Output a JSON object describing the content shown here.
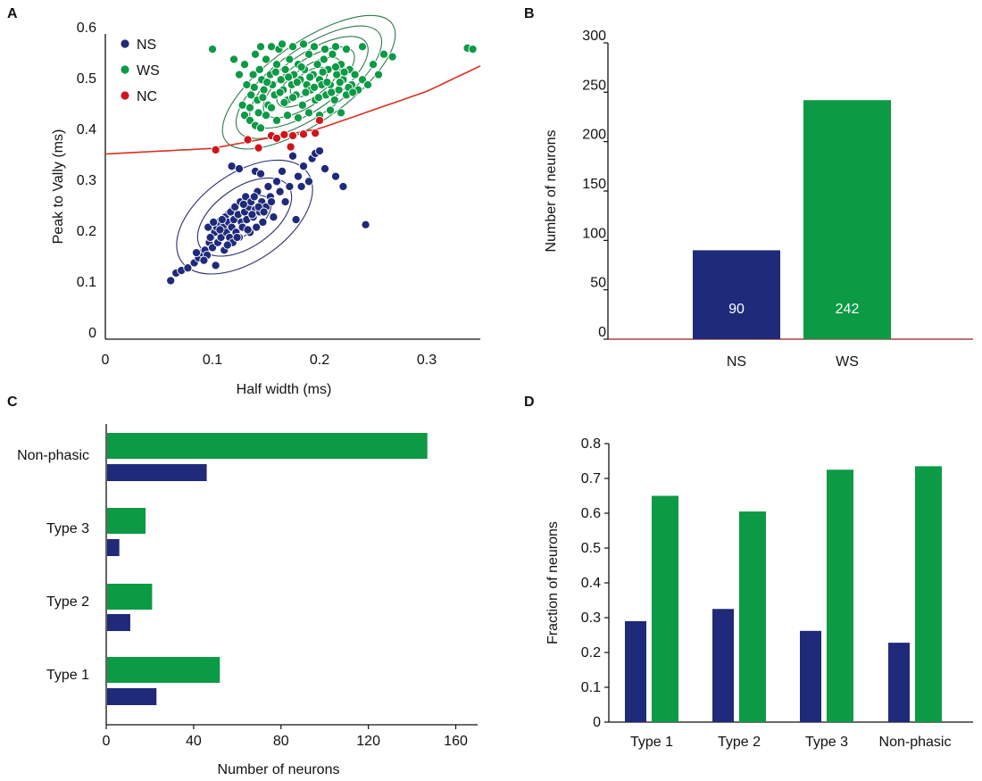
{
  "colors": {
    "ns": "#1f2a7a",
    "ws": "#0c9a45",
    "nc": "#d0151a",
    "axis": "#111111",
    "contour_ns": "#2a2f6e",
    "contour_ws": "#2f7a4b",
    "boundary": "#d7301f",
    "axis_b": "#8b2020"
  },
  "chart_data": [
    {
      "panel": "A",
      "type": "scatter",
      "xlabel": "Half width (ms)",
      "ylabel": "Peak to Vally (ms)",
      "xlim": [
        0,
        0.35
      ],
      "ylim": [
        0,
        0.6
      ],
      "x_ticks": [
        "0",
        "0.1",
        "0.2",
        "0.3"
      ],
      "y_ticks": [
        "0",
        "0.1",
        "0.2",
        "0.3",
        "0.4",
        "0.5",
        "0.6"
      ],
      "legend": [
        "NS",
        "WS",
        "NC"
      ],
      "legend_position": "top-left",
      "boundary": {
        "description": "curved decision boundary",
        "points": [
          [
            0,
            0.364
          ],
          [
            0.1,
            0.375
          ],
          [
            0.2,
            0.414
          ],
          [
            0.3,
            0.487
          ],
          [
            0.35,
            0.537
          ]
        ]
      },
      "series": [
        {
          "name": "NS",
          "points": [
            [
              0.061,
              0.115
            ],
            [
              0.066,
              0.13
            ],
            [
              0.071,
              0.135
            ],
            [
              0.077,
              0.14
            ],
            [
              0.083,
              0.15
            ],
            [
              0.087,
              0.16
            ],
            [
              0.09,
              0.17
            ],
            [
              0.093,
              0.175
            ],
            [
              0.095,
              0.165
            ],
            [
              0.097,
              0.19
            ],
            [
              0.099,
              0.2
            ],
            [
              0.1,
              0.18
            ],
            [
              0.102,
              0.21
            ],
            [
              0.104,
              0.22
            ],
            [
              0.105,
              0.19
            ],
            [
              0.106,
              0.23
            ],
            [
              0.108,
              0.2
            ],
            [
              0.11,
              0.22
            ],
            [
              0.111,
              0.175
            ],
            [
              0.112,
              0.24
            ],
            [
              0.113,
              0.21
            ],
            [
              0.115,
              0.23
            ],
            [
              0.116,
              0.2
            ],
            [
              0.117,
              0.25
            ],
            [
              0.118,
              0.22
            ],
            [
              0.119,
              0.19
            ],
            [
              0.12,
              0.235
            ],
            [
              0.121,
              0.26
            ],
            [
              0.122,
              0.21
            ],
            [
              0.124,
              0.245
            ],
            [
              0.125,
              0.2
            ],
            [
              0.126,
              0.27
            ],
            [
              0.127,
              0.23
            ],
            [
              0.128,
              0.22
            ],
            [
              0.13,
              0.25
            ],
            [
              0.131,
              0.28
            ],
            [
              0.132,
              0.235
            ],
            [
              0.134,
              0.26
            ],
            [
              0.135,
              0.21
            ],
            [
              0.136,
              0.27
            ],
            [
              0.138,
              0.24
            ],
            [
              0.14,
              0.255
            ],
            [
              0.141,
              0.22
            ],
            [
              0.142,
              0.29
            ],
            [
              0.144,
              0.25
            ],
            [
              0.146,
              0.27
            ],
            [
              0.147,
              0.23
            ],
            [
              0.15,
              0.26
            ],
            [
              0.152,
              0.3
            ],
            [
              0.154,
              0.28
            ],
            [
              0.157,
              0.24
            ],
            [
              0.16,
              0.31
            ],
            [
              0.163,
              0.29
            ],
            [
              0.165,
              0.33
            ],
            [
              0.168,
              0.27
            ],
            [
              0.172,
              0.3
            ],
            [
              0.175,
              0.36
            ],
            [
              0.178,
              0.235
            ],
            [
              0.18,
              0.32
            ],
            [
              0.183,
              0.3
            ],
            [
              0.185,
              0.34
            ],
            [
              0.19,
              0.31
            ],
            [
              0.193,
              0.355
            ],
            [
              0.196,
              0.365
            ],
            [
              0.2,
              0.37
            ],
            [
              0.205,
              0.335
            ],
            [
              0.215,
              0.32
            ],
            [
              0.222,
              0.3
            ],
            [
              0.243,
              0.225
            ],
            [
              0.085,
              0.17
            ],
            [
              0.092,
              0.155
            ],
            [
              0.098,
              0.2
            ],
            [
              0.103,
              0.145
            ],
            [
              0.107,
              0.215
            ],
            [
              0.109,
              0.235
            ],
            [
              0.114,
              0.185
            ],
            [
              0.123,
              0.2
            ],
            [
              0.129,
              0.265
            ],
            [
              0.133,
              0.215
            ],
            [
              0.137,
              0.245
            ],
            [
              0.139,
              0.28
            ],
            [
              0.143,
              0.26
            ],
            [
              0.148,
              0.25
            ],
            [
              0.155,
              0.27
            ],
            [
              0.096,
              0.22
            ],
            [
              0.101,
              0.23
            ],
            [
              0.118,
              0.34
            ],
            [
              0.125,
              0.335
            ],
            [
              0.14,
              0.33
            ],
            [
              0.145,
              0.325
            ]
          ]
        },
        {
          "name": "WS",
          "points": [
            [
              0.1,
              0.57
            ],
            [
              0.24,
              0.575
            ],
            [
              0.26,
              0.56
            ],
            [
              0.268,
              0.555
            ],
            [
              0.338,
              0.572
            ],
            [
              0.343,
              0.57
            ],
            [
              0.13,
              0.44
            ],
            [
              0.135,
              0.43
            ],
            [
              0.14,
              0.42
            ],
            [
              0.145,
              0.415
            ],
            [
              0.128,
              0.46
            ],
            [
              0.132,
              0.5
            ],
            [
              0.136,
              0.48
            ],
            [
              0.138,
              0.52
            ],
            [
              0.14,
              0.56
            ],
            [
              0.142,
              0.47
            ],
            [
              0.144,
              0.53
            ],
            [
              0.146,
              0.51
            ],
            [
              0.148,
              0.49
            ],
            [
              0.15,
              0.55
            ],
            [
              0.152,
              0.46
            ],
            [
              0.154,
              0.52
            ],
            [
              0.156,
              0.5
            ],
            [
              0.158,
              0.48
            ],
            [
              0.16,
              0.54
            ],
            [
              0.162,
              0.57
            ],
            [
              0.164,
              0.51
            ],
            [
              0.166,
              0.49
            ],
            [
              0.168,
              0.53
            ],
            [
              0.17,
              0.47
            ],
            [
              0.172,
              0.55
            ],
            [
              0.174,
              0.5
            ],
            [
              0.176,
              0.52
            ],
            [
              0.178,
              0.48
            ],
            [
              0.18,
              0.54
            ],
            [
              0.182,
              0.51
            ],
            [
              0.184,
              0.46
            ],
            [
              0.186,
              0.53
            ],
            [
              0.188,
              0.5
            ],
            [
              0.19,
              0.56
            ],
            [
              0.192,
              0.49
            ],
            [
              0.194,
              0.52
            ],
            [
              0.196,
              0.47
            ],
            [
              0.198,
              0.54
            ],
            [
              0.2,
              0.51
            ],
            [
              0.202,
              0.5
            ],
            [
              0.204,
              0.55
            ],
            [
              0.206,
              0.48
            ],
            [
              0.208,
              0.53
            ],
            [
              0.21,
              0.5
            ],
            [
              0.212,
              0.56
            ],
            [
              0.214,
              0.47
            ],
            [
              0.216,
              0.52
            ],
            [
              0.218,
              0.49
            ],
            [
              0.22,
              0.54
            ],
            [
              0.222,
              0.51
            ],
            [
              0.225,
              0.48
            ],
            [
              0.228,
              0.53
            ],
            [
              0.23,
              0.5
            ],
            [
              0.233,
              0.52
            ],
            [
              0.236,
              0.49
            ],
            [
              0.24,
              0.51
            ],
            [
              0.245,
              0.5
            ],
            [
              0.25,
              0.54
            ],
            [
              0.255,
              0.52
            ],
            [
              0.135,
              0.455
            ],
            [
              0.139,
              0.495
            ],
            [
              0.143,
              0.445
            ],
            [
              0.147,
              0.475
            ],
            [
              0.151,
              0.505
            ],
            [
              0.155,
              0.455
            ],
            [
              0.159,
              0.525
            ],
            [
              0.163,
              0.485
            ],
            [
              0.167,
              0.465
            ],
            [
              0.171,
              0.515
            ],
            [
              0.175,
              0.475
            ],
            [
              0.179,
              0.505
            ],
            [
              0.183,
              0.535
            ],
            [
              0.187,
              0.485
            ],
            [
              0.191,
              0.515
            ],
            [
              0.195,
              0.495
            ],
            [
              0.199,
              0.475
            ],
            [
              0.203,
              0.525
            ],
            [
              0.207,
              0.505
            ],
            [
              0.211,
              0.485
            ],
            [
              0.215,
              0.535
            ],
            [
              0.219,
              0.505
            ],
            [
              0.223,
              0.525
            ],
            [
              0.227,
              0.495
            ],
            [
              0.231,
              0.485
            ],
            [
              0.155,
              0.575
            ],
            [
              0.165,
              0.58
            ],
            [
              0.175,
              0.575
            ],
            [
              0.185,
              0.58
            ],
            [
              0.195,
              0.575
            ],
            [
              0.205,
              0.57
            ],
            [
              0.215,
              0.575
            ],
            [
              0.225,
              0.57
            ],
            [
              0.145,
              0.575
            ],
            [
              0.17,
              0.44
            ],
            [
              0.18,
              0.435
            ],
            [
              0.19,
              0.445
            ],
            [
              0.2,
              0.44
            ],
            [
              0.21,
              0.45
            ],
            [
              0.22,
              0.445
            ],
            [
              0.16,
              0.43
            ],
            [
              0.15,
              0.44
            ],
            [
              0.125,
              0.52
            ],
            [
              0.13,
              0.54
            ],
            [
              0.12,
              0.55
            ]
          ]
        },
        {
          "name": "NC",
          "points": [
            [
              0.103,
              0.372
            ],
            [
              0.133,
              0.392
            ],
            [
              0.143,
              0.376
            ],
            [
              0.155,
              0.4
            ],
            [
              0.16,
              0.395
            ],
            [
              0.167,
              0.402
            ],
            [
              0.175,
              0.4
            ],
            [
              0.185,
              0.403
            ],
            [
              0.196,
              0.405
            ],
            [
              0.2,
              0.43
            ],
            [
              0.173,
              0.378
            ]
          ]
        }
      ],
      "contours": {
        "NS": {
          "center": [
            0.13,
            0.24
          ],
          "rings": [
            [
              0.028,
              0.032
            ],
            [
              0.05,
              0.058
            ],
            [
              0.072,
              0.086
            ]
          ]
        },
        "WS": {
          "center": [
            0.19,
            0.505
          ],
          "rings": [
            [
              0.02,
              0.02
            ],
            [
              0.035,
              0.03
            ],
            [
              0.05,
              0.042
            ],
            [
              0.065,
              0.054
            ],
            [
              0.08,
              0.066
            ],
            [
              0.095,
              0.078
            ]
          ]
        }
      }
    },
    {
      "panel": "B",
      "type": "bar",
      "categories": [
        "NS",
        "WS"
      ],
      "values": [
        90,
        242
      ],
      "data_labels": [
        "90",
        "242"
      ],
      "ylabel": "Number of neurons",
      "ylim": [
        0,
        300
      ],
      "y_ticks": [
        "0",
        "50",
        "100",
        "150",
        "200",
        "250",
        "300"
      ]
    },
    {
      "panel": "C",
      "type": "bar",
      "orientation": "horizontal",
      "categories": [
        "Type 1",
        "Type 2",
        "Type 3",
        "Non-phasic"
      ],
      "series": [
        {
          "name": "WS",
          "values": [
            52,
            21,
            18,
            147
          ]
        },
        {
          "name": "NS",
          "values": [
            23,
            11,
            6,
            46
          ]
        }
      ],
      "xlabel": "Number of neurons",
      "xlim": [
        0,
        170
      ],
      "x_ticks": [
        "0",
        "40",
        "80",
        "120",
        "160"
      ]
    },
    {
      "panel": "D",
      "type": "bar",
      "categories": [
        "Type 1",
        "Type 2",
        "Type 3",
        "Non-phasic"
      ],
      "series": [
        {
          "name": "NS",
          "values": [
            0.29,
            0.325,
            0.262,
            0.228
          ]
        },
        {
          "name": "WS",
          "values": [
            0.65,
            0.605,
            0.725,
            0.735
          ]
        }
      ],
      "ylabel": "Fraction of neurons",
      "ylim": [
        0,
        0.8
      ],
      "y_ticks": [
        "0",
        "0.1",
        "0.2",
        "0.3",
        "0.4",
        "0.5",
        "0.6",
        "0.7",
        "0.8"
      ]
    }
  ]
}
